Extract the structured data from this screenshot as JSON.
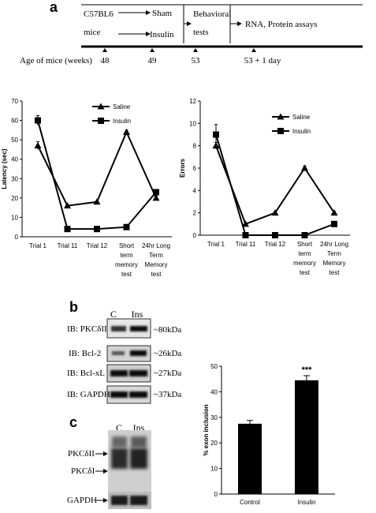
{
  "panel_a": {
    "letter": "a",
    "timeline": {
      "mice_line1": "C57BL6",
      "mice_line2": "mice",
      "sham": "Sham",
      "insulin": "Insulin",
      "behavioral_line1": "Behavioral",
      "behavioral_line2": "tests",
      "assays": "RNA, Protein assays",
      "age_label": "Age of mice (weeks)",
      "ages": [
        "48",
        "49",
        "53",
        "53 + 1 day"
      ]
    }
  },
  "panel_b": {
    "letter": "b",
    "lane_labels": [
      "C",
      "Ins"
    ],
    "blots": [
      {
        "ib": "IB: PKCδII",
        "size": "~80kDa"
      },
      {
        "ib": "IB: Bcl-2",
        "size": "~26kDa"
      },
      {
        "ib": "IB: Bcl-xL",
        "size": "~27kDa"
      },
      {
        "ib": "IB: GAPDH",
        "size": "~37kDa"
      }
    ]
  },
  "panel_c": {
    "letter": "c",
    "lane_labels": [
      "C",
      "Ins"
    ],
    "band_labels": [
      "PKCδII",
      "PKCδI",
      "GAPDH"
    ]
  },
  "chart_data": [
    {
      "type": "line",
      "categories": [
        "Trial 1",
        "Trial 11",
        "Trial 12",
        "Short term memory test",
        "24hr Long Term Memory test"
      ],
      "category_lines": [
        [
          "Trial 1"
        ],
        [
          "Trial 11"
        ],
        [
          "Trial 12"
        ],
        [
          "Short",
          "term",
          "memory",
          "test"
        ],
        [
          "24hr Long",
          "Term",
          "Memory",
          "test"
        ]
      ],
      "series": [
        {
          "name": "Saline",
          "marker": "triangle",
          "values": [
            47,
            16,
            18,
            54,
            20
          ],
          "errors": [
            2,
            0.5,
            0.5,
            1,
            1
          ]
        },
        {
          "name": "Insulin",
          "marker": "square",
          "values": [
            60,
            4,
            4,
            5,
            23
          ],
          "errors": [
            2.5,
            0.5,
            0.5,
            0.5,
            1
          ]
        }
      ],
      "ylabel": "Latency (sec)",
      "ylim": [
        0,
        70
      ],
      "yticks": [
        "0",
        "10",
        "20",
        "30",
        "40",
        "50",
        "60",
        "70"
      ],
      "legend": "top-right",
      "grid": false
    },
    {
      "type": "line",
      "categories": [
        "Trial 1",
        "Trial 11",
        "Trial 12",
        "Short term memory test",
        "24hr Long Term Memory test"
      ],
      "category_lines": [
        [
          "Trial 1"
        ],
        [
          "Trial 11"
        ],
        [
          "Trial 12"
        ],
        [
          "Short",
          "term",
          "memory",
          "test"
        ],
        [
          "24hr Long",
          "Term",
          "Memory",
          "test"
        ]
      ],
      "series": [
        {
          "name": "Saline",
          "marker": "triangle",
          "values": [
            8,
            1,
            2,
            6,
            2
          ],
          "errors": [
            0.3,
            0,
            0,
            0.2,
            0.1
          ]
        },
        {
          "name": "Insulin",
          "marker": "square",
          "values": [
            9,
            0,
            0,
            0,
            1
          ],
          "errors": [
            0.9,
            0,
            0,
            0,
            0.1
          ]
        }
      ],
      "ylabel": "Errors",
      "ylim": [
        0,
        12
      ],
      "yticks": [
        "0",
        "2",
        "4",
        "6",
        "8",
        "10",
        "12"
      ],
      "legend": "top-right",
      "grid": false
    },
    {
      "type": "bar",
      "categories": [
        "Control",
        "Insulin"
      ],
      "values": [
        27.5,
        44.5
      ],
      "errors": [
        1.3,
        1.8
      ],
      "annotations": [
        "",
        "***"
      ],
      "ylabel": "% exon inclusion",
      "ylim": [
        0,
        50
      ],
      "yticks": [
        "0",
        "10",
        "20",
        "30",
        "40",
        "50"
      ],
      "grid": false
    }
  ]
}
